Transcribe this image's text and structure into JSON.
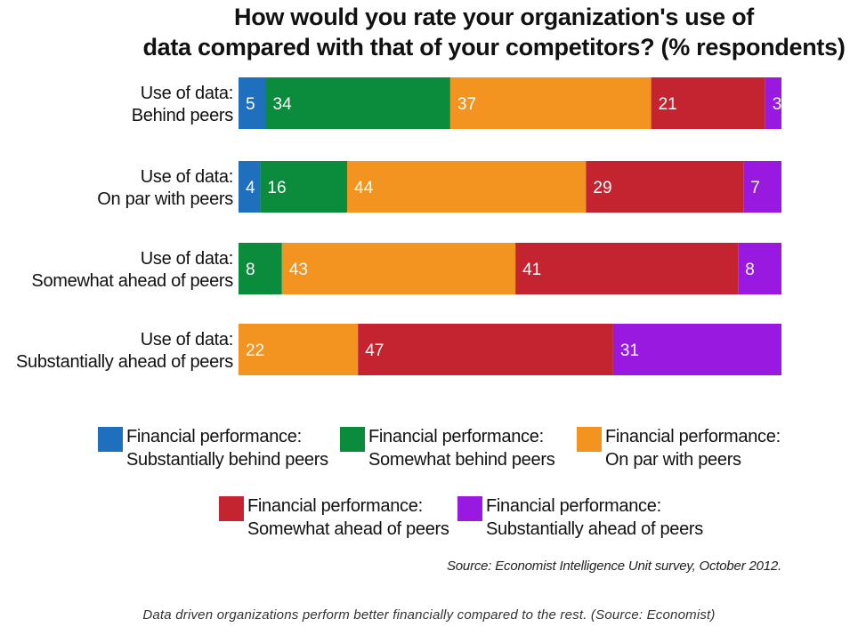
{
  "chart_data": {
    "type": "bar",
    "orientation": "horizontal",
    "stacked": true,
    "title": [
      "How would you rate your organization's use of",
      "data compared with that of your competitors? (% respondents)"
    ],
    "categories": [
      [
        "Use of data:",
        "Behind peers"
      ],
      [
        "Use of data:",
        "On par with peers"
      ],
      [
        "Use of data:",
        "Somewhat ahead of peers"
      ],
      [
        "Use of data:",
        "Substantially ahead of peers"
      ]
    ],
    "series": [
      {
        "name": [
          "Financial performance:",
          "Substantially behind peers"
        ],
        "color": "#1f6fbf",
        "values": [
          5,
          4,
          0,
          0
        ]
      },
      {
        "name": [
          "Financial performance:",
          "Somewhat behind peers"
        ],
        "color": "#0a8c3c",
        "values": [
          34,
          16,
          8,
          0
        ]
      },
      {
        "name": [
          "Financial performance:",
          "On par with peers"
        ],
        "color": "#f39420",
        "values": [
          37,
          44,
          43,
          22
        ]
      },
      {
        "name": [
          "Financial performance:",
          "Somewhat ahead of peers"
        ],
        "color": "#c32430",
        "values": [
          21,
          29,
          41,
          47
        ]
      },
      {
        "name": [
          "Financial performance:",
          "Substantially ahead of peers"
        ],
        "color": "#9a19e0",
        "values": [
          3,
          7,
          8,
          31
        ]
      }
    ],
    "legend_position": "bottom",
    "grid": false
  },
  "source": "Source: Economist Intelligence Unit survey, October 2012.",
  "caption": "Data driven organizations perform better financially compared to the rest. (Source: Economist)"
}
